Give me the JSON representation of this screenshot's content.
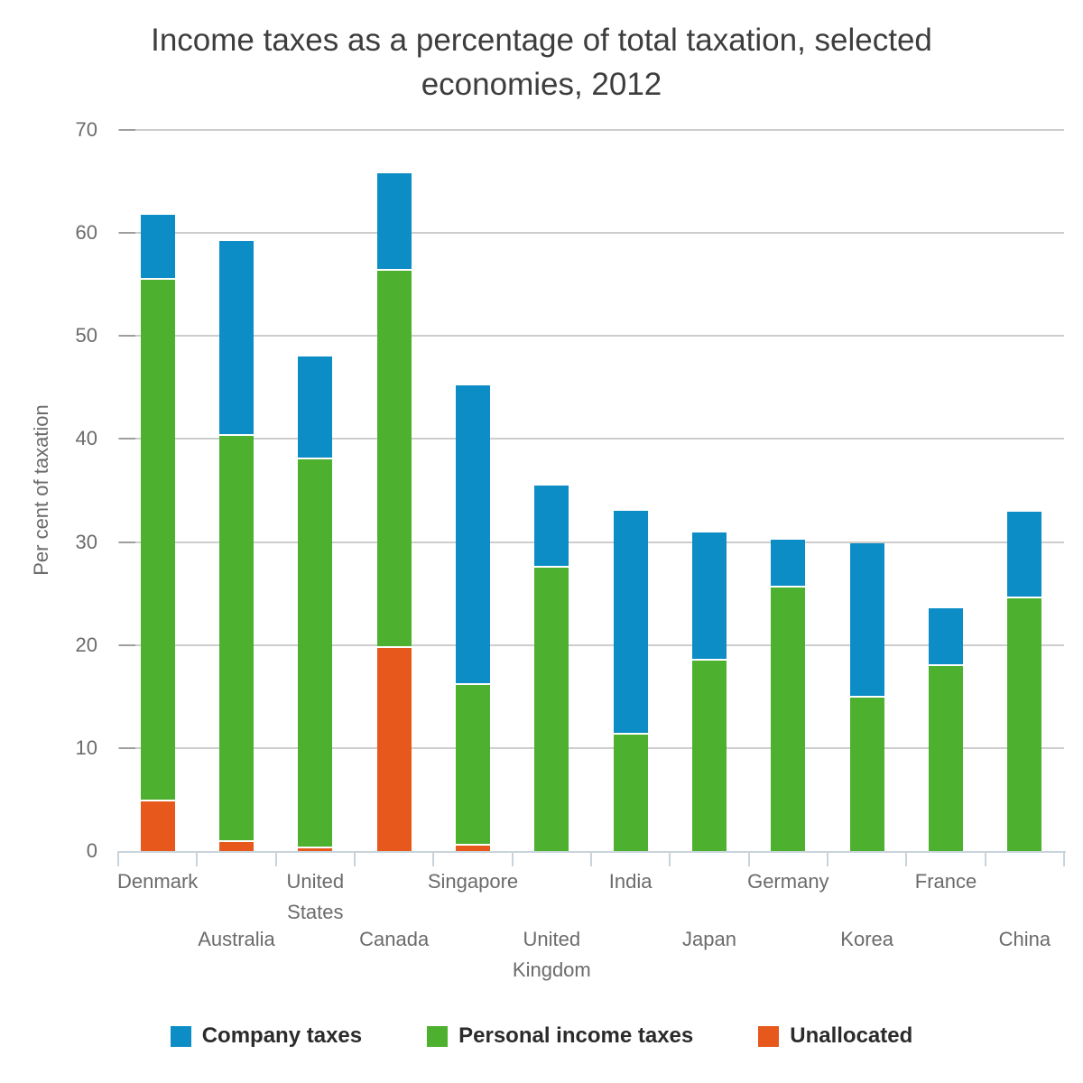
{
  "title": {
    "line1": "Income taxes as a percentage of total taxation, selected",
    "line2": "economies, 2012"
  },
  "chart_data": {
    "type": "bar",
    "stacked": true,
    "title": "Income taxes as a percentage of total taxation, selected economies, 2012",
    "xlabel": "",
    "ylabel": "Per cent of taxation",
    "ylim": [
      0,
      70
    ],
    "yticks": [
      0,
      10,
      20,
      30,
      40,
      50,
      60,
      70
    ],
    "grid": true,
    "legend_position": "bottom",
    "categories": [
      "Denmark",
      "Australia",
      "United States",
      "Canada",
      "Singapore",
      "United Kingdom",
      "India",
      "Japan",
      "Germany",
      "Korea",
      "France",
      "China"
    ],
    "series": [
      {
        "name": "Company taxes",
        "color": "#0d8dc5",
        "values": [
          6.3,
          18.9,
          10.0,
          9.5,
          29.1,
          8.0,
          21.7,
          12.4,
          4.6,
          15.0,
          5.6,
          8.4
        ]
      },
      {
        "name": "Personal income taxes",
        "color": "#4db02e",
        "values": [
          50.7,
          39.4,
          37.7,
          36.6,
          15.6,
          27.5,
          11.3,
          18.5,
          25.6,
          14.9,
          18.0,
          24.5
        ]
      },
      {
        "name": "Unallocated",
        "color": "#e7581c",
        "values": [
          4.8,
          0.9,
          0.3,
          19.7,
          0.5,
          0,
          0,
          0,
          0,
          0,
          0,
          0
        ]
      }
    ],
    "stack_order_bottom_to_top": [
      "Unallocated",
      "Personal income taxes",
      "Company taxes"
    ],
    "bar_totals": [
      61.8,
      59.2,
      48.0,
      65.8,
      45.2,
      35.5,
      33.0,
      30.9,
      30.2,
      29.9,
      23.6,
      32.9
    ]
  },
  "colors": {
    "gridline": "#cdcdcd",
    "axis": "#c8d4dc",
    "tick_dash": "#9e9e9e",
    "axis_text": "#6b6b6b",
    "title_text": "#3d3d3d",
    "legend_text": "#2b2b2b"
  }
}
